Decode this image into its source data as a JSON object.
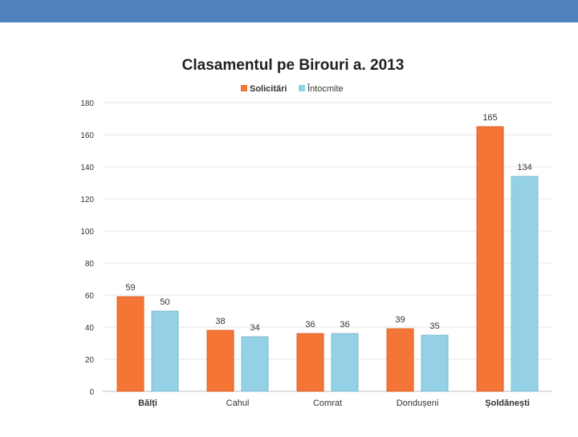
{
  "colors": {
    "header_bar": "#4f81bd",
    "solicitari": "#f47535",
    "intocmite": "#94d1e6"
  },
  "chart_data": {
    "type": "bar",
    "title": "Clasamentul pe Birouri a. 2013",
    "categories": [
      "Bălți",
      "Cahul",
      "Comrat",
      "Dondușeni",
      "Șoldănești"
    ],
    "series": [
      {
        "name": "Solicitări",
        "values": [
          59,
          38,
          36,
          39,
          165
        ]
      },
      {
        "name": "Întocmite",
        "values": [
          50,
          34,
          36,
          35,
          134
        ]
      }
    ],
    "ylim": [
      0,
      180
    ],
    "yticks": [
      "0",
      "20",
      "40",
      "60",
      "80",
      "100",
      "120",
      "140",
      "160",
      "180"
    ],
    "grid": true,
    "legend_position": "top"
  }
}
